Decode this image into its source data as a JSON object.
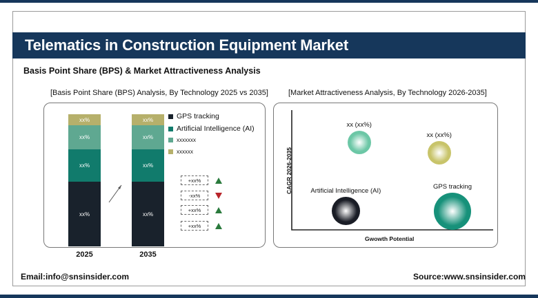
{
  "header": {
    "title": "Telematics in Construction Equipment Market",
    "subtitle": "Basis Point Share (BPS) & Market Attractiveness Analysis"
  },
  "left_panel": {
    "heading": "[Basis Point Share (BPS) Analysis, By Technology 2025 vs 2035]"
  },
  "right_panel": {
    "heading": "[Market Attractiveness Analysis, By Technology 2026-2035]",
    "y_axis_label": "CAGR 2026-2035",
    "x_axis_label": "Gwowth Potential"
  },
  "chart_data": [
    {
      "type": "bar",
      "stacked": true,
      "title": "",
      "categories": [
        "2025",
        "2035"
      ],
      "series": [
        {
          "name": "GPS tracking",
          "color": "#19222c",
          "values": [
            46,
            46
          ],
          "labels": [
            "xx%",
            "xx%"
          ]
        },
        {
          "name": "Artificial Intelligence (AI)",
          "color": "#117b6c",
          "values": [
            23,
            23
          ],
          "labels": [
            "xx%",
            "xx%"
          ]
        },
        {
          "name": "xxxxxxx",
          "color": "#5fa891",
          "values": [
            17,
            17
          ],
          "labels": [
            "xx%",
            "xx%"
          ]
        },
        {
          "name": "xxxxxx",
          "color": "#b6b06b",
          "values": [
            8,
            8
          ],
          "labels": [
            "xx%",
            "xx%"
          ]
        }
      ],
      "bps_changes": [
        {
          "label": "+xx%",
          "direction": "up"
        },
        {
          "label": "-xx%",
          "direction": "down"
        },
        {
          "label": "+xx%",
          "direction": "up"
        },
        {
          "label": "+xx%",
          "direction": "up"
        }
      ],
      "colors": {
        "up": "#2a7a3c",
        "down": "#b8242a"
      }
    },
    {
      "type": "scatter",
      "title": "",
      "xlabel": "Gwowth Potential",
      "ylabel": "CAGR 2026-2035",
      "points": [
        {
          "label": "xx (xx%)",
          "x": 1.5,
          "y": 7.5,
          "size": 1.0,
          "color": "#6cc7a6"
        },
        {
          "label": "xx (xx%)",
          "x": 3.3,
          "y": 6.6,
          "size": 1.0,
          "color": "#c8c46a"
        },
        {
          "label": "Artificial Intelligence (AI)",
          "x": 1.2,
          "y": 1.6,
          "size": 1.2,
          "color": "#1a1d26"
        },
        {
          "label": "GPS tracking",
          "x": 3.6,
          "y": 1.6,
          "size": 1.6,
          "color": "#17917a"
        }
      ],
      "xlim": [
        0,
        4.5
      ],
      "ylim": [
        0,
        10
      ]
    }
  ],
  "footer": {
    "email": "Email:info@snsinsider.com",
    "source": "Source:www.snsinsider.com"
  }
}
